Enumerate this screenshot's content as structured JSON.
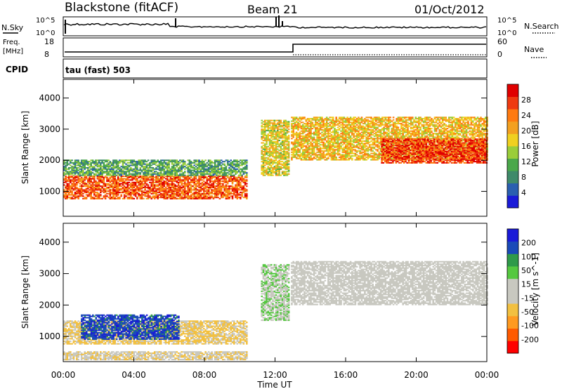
{
  "header": {
    "station": "Blackstone (fitACF)",
    "beam": "Beam 21",
    "date": "01/Oct/2012"
  },
  "noise_panel": {
    "left_label": "N.Sky",
    "right_label": "N.Search",
    "left_ticks": [
      "10^5",
      "10^0"
    ],
    "right_ticks": [
      "10^5",
      "10^0"
    ]
  },
  "freq_panel": {
    "left_label_1": "Freq.",
    "left_label_2": "[MHz]",
    "right_label": "Nave",
    "left_ticks": [
      "18",
      "8"
    ],
    "right_ticks": [
      "60",
      "0"
    ]
  },
  "cpid_panel": {
    "label": "CPID",
    "mode": "tau (fast) 503"
  },
  "colors": {
    "power_scale": [
      "#1a1ad8",
      "#2a5fb0",
      "#3f8a6a",
      "#4aa84a",
      "#9acd3a",
      "#f0d020",
      "#f3a020",
      "#ff7a10",
      "#ef3a10",
      "#e00000"
    ],
    "velocity_scale": [
      "#ff0000",
      "#ff5a00",
      "#ff9a20",
      "#f2c040",
      "#c8c8c0",
      "#c8c8c0",
      "#55c840",
      "#2f9a4a",
      "#1a4ab8",
      "#1a1ad8"
    ]
  },
  "chart_data": [
    {
      "type": "heatmap",
      "name": "power",
      "xlabel": "",
      "ylabel": "Slant Range [km]",
      "x_ticks": [
        "00:00",
        "04:00",
        "08:00",
        "12:00",
        "16:00",
        "20:00",
        "00:00"
      ],
      "y_ticks": [
        "1000",
        "2000",
        "3000",
        "4000"
      ],
      "ylim": [
        200,
        4600
      ],
      "xlim_hours": [
        0,
        24
      ],
      "colorbar": {
        "label": "Power [dB]",
        "ticks": [
          "28",
          "24",
          "20",
          "16",
          "12",
          "8",
          "4"
        ],
        "range": [
          0,
          30
        ]
      },
      "regions": [
        {
          "t0": 0.0,
          "t1": 10.4,
          "r0": 750,
          "r1": 1500,
          "level": 24
        },
        {
          "t0": 0.0,
          "t1": 10.4,
          "r0": 1500,
          "r1": 2000,
          "level": 10
        },
        {
          "t0": 11.2,
          "t1": 12.8,
          "r0": 1500,
          "r1": 3300,
          "level": 16
        },
        {
          "t0": 12.9,
          "t1": 24.0,
          "r0": 2000,
          "r1": 3400,
          "level": 18
        },
        {
          "t0": 18.0,
          "t1": 24.0,
          "r0": 1900,
          "r1": 2700,
          "level": 26
        }
      ]
    },
    {
      "type": "heatmap",
      "name": "velocity",
      "xlabel": "Time UT",
      "ylabel": "Slant Range [km]",
      "x_ticks": [
        "00:00",
        "04:00",
        "08:00",
        "12:00",
        "16:00",
        "20:00",
        "00:00"
      ],
      "y_ticks": [
        "1000",
        "2000",
        "3000",
        "4000"
      ],
      "ylim": [
        200,
        4600
      ],
      "xlim_hours": [
        0,
        24
      ],
      "colorbar": {
        "label": "Velocity [m s^-1]",
        "ticks": [
          "200",
          "100",
          "50",
          "15",
          "-15",
          "-50",
          "-100",
          "-200"
        ],
        "range": [
          -250,
          250
        ]
      },
      "regions": [
        {
          "t0": 0.0,
          "t1": 10.4,
          "r0": 750,
          "r1": 1500,
          "level": -60
        },
        {
          "t0": 1.0,
          "t1": 6.5,
          "r0": 900,
          "r1": 1700,
          "level": 180
        },
        {
          "t0": 11.2,
          "t1": 12.8,
          "r0": 1500,
          "r1": 3300,
          "level": 40
        },
        {
          "t0": 12.9,
          "t1": 24.0,
          "r0": 2000,
          "r1": 3400,
          "level": 0
        },
        {
          "t0": 0.0,
          "t1": 10.4,
          "r0": 250,
          "r1": 500,
          "level": -40
        }
      ]
    }
  ]
}
